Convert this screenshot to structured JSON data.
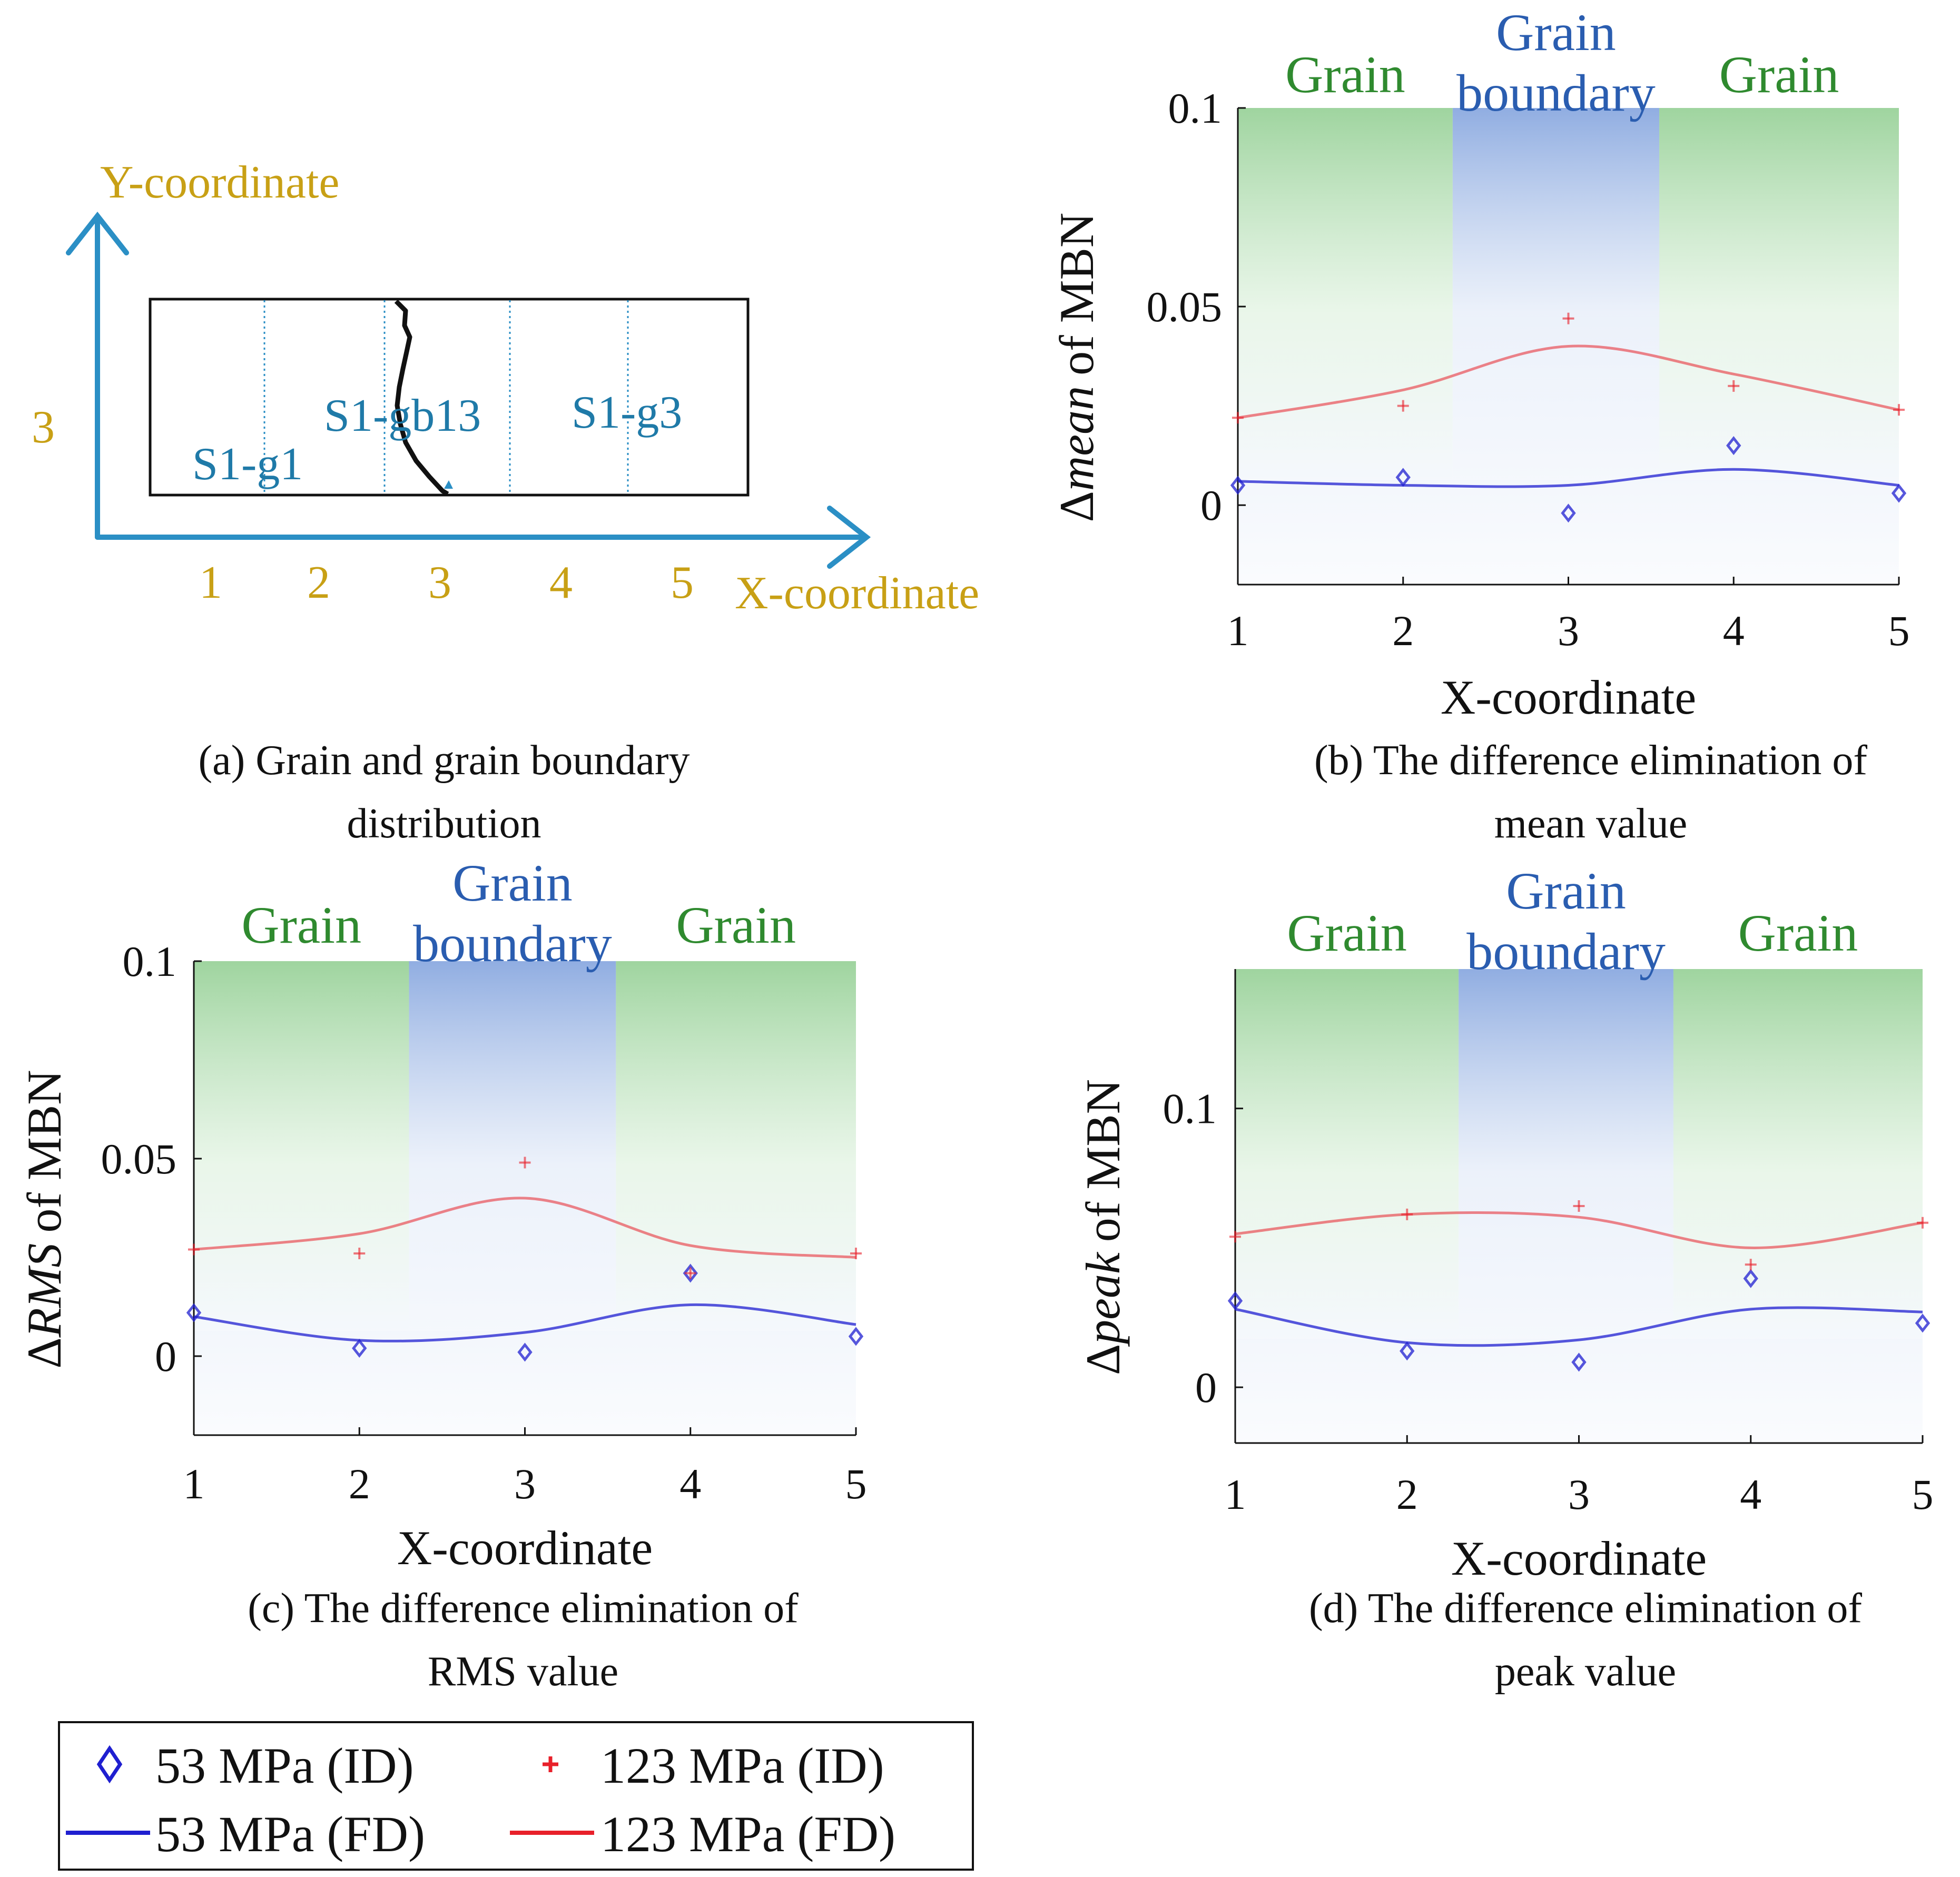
{
  "colors": {
    "series_53": "#1f1fd0",
    "series_123": "#e8202a",
    "grain_region": "#7fc67f",
    "boundary_region": "#7d9fdc",
    "coordinate_text": "#c8a015",
    "grain_label_text": "#1f7aa8",
    "axis_arrow": "#2b8fc5"
  },
  "panel_a": {
    "y_axis_label": "Y-coordinate",
    "x_axis_label": "X-coordinate",
    "y_tick": "3",
    "x_ticks": [
      "1",
      "2",
      "3",
      "4",
      "5"
    ],
    "grain_labels": [
      "S1-g1",
      "S1-gb13",
      "S1-g3"
    ],
    "caption_line1": "(a) Grain and grain boundary",
    "caption_line2": "distribution"
  },
  "regions": {
    "grain": "Grain",
    "boundary_line1": "Grain",
    "boundary_line2": "boundary"
  },
  "x_axis_title": "X-coordinate",
  "ylabel_suffix": "of MBN",
  "chart_data": [
    {
      "panel": "b",
      "type": "scatter",
      "x": [
        1,
        2,
        3,
        4,
        5
      ],
      "ylim": [
        -0.02,
        0.1
      ],
      "yticks": [
        "0",
        "0.05",
        "0.1"
      ],
      "ylabel_symbol": "Δ",
      "ylabel_italic": "mean",
      "xlabel": "X-coordinate",
      "caption_line1": "(b) The difference elimination of",
      "caption_line2": "mean value",
      "series": [
        {
          "name": "53 MPa (ID)",
          "values": [
            0.005,
            0.007,
            -0.002,
            0.015,
            0.003
          ]
        },
        {
          "name": "123 MPa (ID)",
          "values": [
            0.022,
            0.025,
            0.047,
            0.03,
            0.024
          ]
        },
        {
          "name": "53 MPa (FD)",
          "values": [
            0.006,
            0.005,
            0.005,
            0.009,
            0.005
          ]
        },
        {
          "name": "123 MPa (FD)",
          "values": [
            0.022,
            0.029,
            0.04,
            0.033,
            0.024
          ]
        }
      ]
    },
    {
      "panel": "c",
      "type": "scatter",
      "x": [
        1,
        2,
        3,
        4,
        5
      ],
      "ylim": [
        -0.02,
        0.1
      ],
      "yticks": [
        "0",
        "0.05",
        "0.1"
      ],
      "ylabel_symbol": "Δ",
      "ylabel_italic": "RMS",
      "xlabel": "X-coordinate",
      "caption_line1": "(c) The difference elimination of",
      "caption_line2": "RMS value",
      "series": [
        {
          "name": "53 MPa (ID)",
          "values": [
            0.011,
            0.002,
            0.001,
            0.021,
            0.005
          ]
        },
        {
          "name": "123 MPa (ID)",
          "values": [
            0.027,
            0.026,
            0.049,
            0.021,
            0.026
          ]
        },
        {
          "name": "53 MPa (FD)",
          "values": [
            0.01,
            0.004,
            0.006,
            0.013,
            0.008
          ]
        },
        {
          "name": "123 MPa (FD)",
          "values": [
            0.027,
            0.031,
            0.04,
            0.028,
            0.025
          ]
        }
      ]
    },
    {
      "panel": "d",
      "type": "scatter",
      "x": [
        1,
        2,
        3,
        4,
        5
      ],
      "ylim": [
        -0.02,
        0.15
      ],
      "yticks": [
        "0",
        "0.1"
      ],
      "ylabel_symbol": "Δ",
      "ylabel_italic": "peak",
      "xlabel": "X-coordinate",
      "caption_line1": "(d) The difference elimination of",
      "caption_line2": "peak value",
      "series": [
        {
          "name": "53 MPa (ID)",
          "values": [
            0.031,
            0.013,
            0.009,
            0.039,
            0.023
          ]
        },
        {
          "name": "123 MPa (ID)",
          "values": [
            0.054,
            0.062,
            0.065,
            0.044,
            0.059
          ]
        },
        {
          "name": "53 MPa (FD)",
          "values": [
            0.028,
            0.016,
            0.017,
            0.028,
            0.027
          ]
        },
        {
          "name": "123 MPa (FD)",
          "values": [
            0.055,
            0.062,
            0.061,
            0.05,
            0.059
          ]
        }
      ]
    }
  ],
  "legend": {
    "items": [
      {
        "label": "53 MPa (ID)",
        "kind": "diamond",
        "color": "#1f1fd0"
      },
      {
        "label": "123 MPa (ID)",
        "kind": "plus",
        "color": "#e8202a"
      },
      {
        "label": "53 MPa (FD)",
        "kind": "line",
        "color": "#1f1fd0"
      },
      {
        "label": "123 MPa (FD)",
        "kind": "line",
        "color": "#e8202a"
      }
    ]
  }
}
